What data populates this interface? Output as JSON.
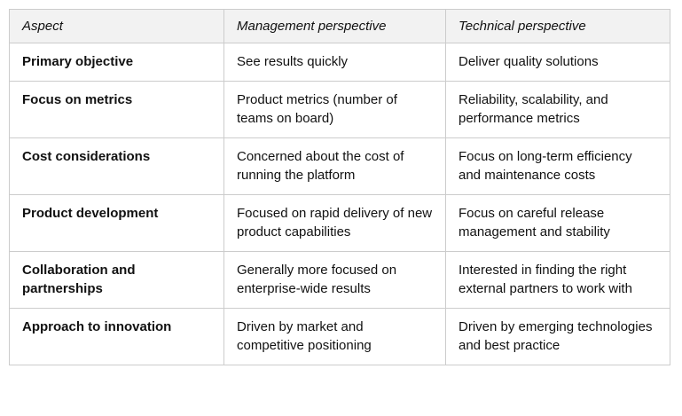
{
  "colors": {
    "header_bg": "#f2f2f2",
    "border": "#cccccc",
    "text": "#111111"
  },
  "table": {
    "columns": [
      {
        "label": "Aspect"
      },
      {
        "label": "Management perspective"
      },
      {
        "label": "Technical perspective"
      }
    ],
    "rows": [
      {
        "aspect": "Primary objective",
        "management": "See results quickly",
        "technical": "Deliver quality solutions"
      },
      {
        "aspect": "Focus on metrics",
        "management": "Product metrics (number of teams on board)",
        "technical": "Reliability, scalability, and performance metrics"
      },
      {
        "aspect": "Cost considerations",
        "management": "Concerned about the cost of running the platform",
        "technical": "Focus on long-term efficiency and maintenance costs"
      },
      {
        "aspect": "Product development",
        "management": "Focused on rapid delivery of new product capabilities",
        "technical": "Focus on careful release management and stability"
      },
      {
        "aspect": "Collaboration and partnerships",
        "management": "Generally more focused on enterprise-wide results",
        "technical": "Interested in finding the right external partners to work with"
      },
      {
        "aspect": "Approach to innovation",
        "management": "Driven by market and competitive positioning",
        "technical": "Driven by emerging technologies and best practice"
      }
    ]
  }
}
